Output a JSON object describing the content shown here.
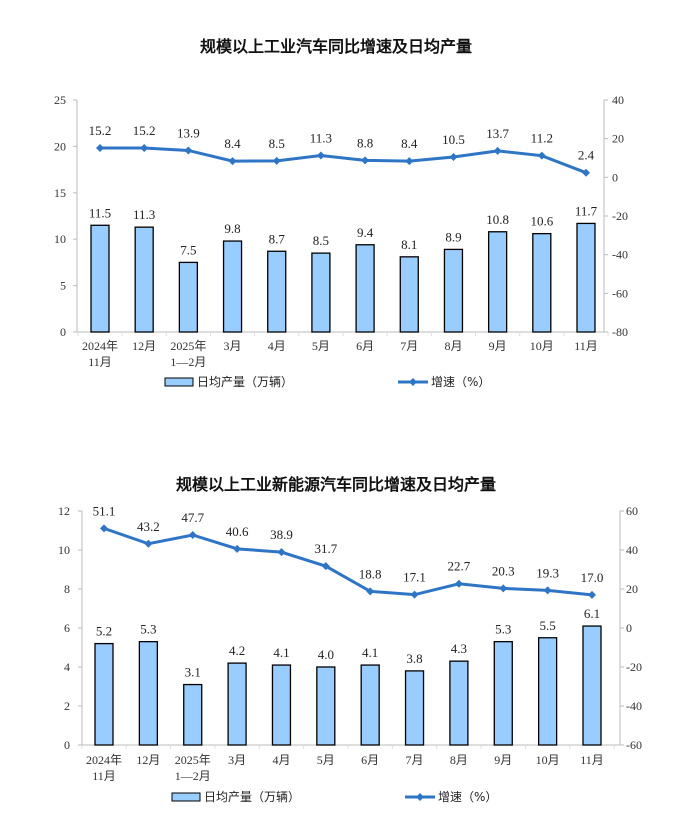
{
  "chart_data": [
    {
      "type": "bar+line",
      "title": "规模以上工业汽车同比增速及日均产量",
      "categories": [
        "2024年\n11月",
        "12月",
        "2025年\n1—2月",
        "3月",
        "4月",
        "5月",
        "6月",
        "7月",
        "8月",
        "9月",
        "10月",
        "11月"
      ],
      "series": [
        {
          "name": "日均产量（万辆）",
          "type": "bar",
          "axis": "left",
          "values": [
            11.5,
            11.3,
            7.5,
            9.8,
            8.7,
            8.5,
            9.4,
            8.1,
            8.9,
            10.8,
            10.6,
            11.7
          ]
        },
        {
          "name": "增速（%）",
          "type": "line",
          "axis": "right",
          "values": [
            15.2,
            15.2,
            13.9,
            8.4,
            8.5,
            11.3,
            8.8,
            8.4,
            10.5,
            13.7,
            11.2,
            2.4
          ]
        }
      ],
      "left_axis": {
        "range": [
          0,
          25
        ],
        "ticks": [
          0,
          5,
          10,
          15,
          20,
          25
        ]
      },
      "right_axis": {
        "range": [
          -80,
          40
        ],
        "ticks": [
          -80,
          -60,
          -40,
          -20,
          0,
          20,
          40
        ]
      },
      "legend_position": "bottom",
      "grid": false,
      "colors": {
        "bar": "#99CCFF",
        "bar_edge": "#000000",
        "line": "#2E75C6"
      }
    },
    {
      "type": "bar+line",
      "title": "规模以上工业新能源汽车同比增速及日均产量",
      "categories": [
        "2024年\n11月",
        "12月",
        "2025年\n1—2月",
        "3月",
        "4月",
        "5月",
        "6月",
        "7月",
        "8月",
        "9月",
        "10月",
        "11月"
      ],
      "series": [
        {
          "name": "日均产量（万辆）",
          "type": "bar",
          "axis": "left",
          "values": [
            5.2,
            5.3,
            3.1,
            4.2,
            4.1,
            4.0,
            4.1,
            3.8,
            4.3,
            5.3,
            5.5,
            6.1
          ]
        },
        {
          "name": "增速（%）",
          "type": "line",
          "axis": "right",
          "values": [
            51.1,
            43.2,
            47.7,
            40.6,
            38.9,
            31.7,
            18.8,
            17.1,
            22.7,
            20.3,
            19.3,
            17.0
          ]
        }
      ],
      "left_axis": {
        "range": [
          0,
          12
        ],
        "ticks": [
          0,
          2,
          4,
          6,
          8,
          10,
          12
        ]
      },
      "right_axis": {
        "range": [
          -60,
          60
        ],
        "ticks": [
          -60,
          -40,
          -20,
          0,
          20,
          40,
          60
        ]
      },
      "legend_position": "bottom",
      "grid": false,
      "colors": {
        "bar": "#99CCFF",
        "bar_edge": "#000000",
        "line": "#2E75C6"
      }
    }
  ]
}
